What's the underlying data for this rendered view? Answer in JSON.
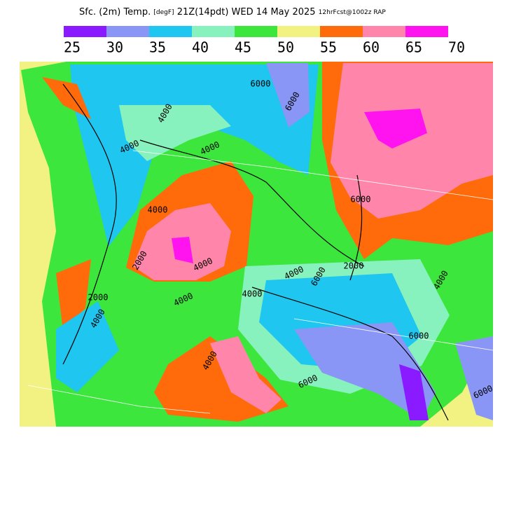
{
  "header": {
    "title": "Sfc. (2m) Temp.",
    "units": "[degF]",
    "time": "21Z(14pdt) WED 14 May 2025",
    "forecast": "12hrFcst@1002z RAP"
  },
  "legend": {
    "colors": [
      "#8a1aff",
      "#8a96f5",
      "#1ec6f0",
      "#88f2be",
      "#3ce63c",
      "#f2f282",
      "#ff6a0a",
      "#ff86aa",
      "#ff14f0"
    ],
    "labels": [
      "25",
      "30",
      "35",
      "40",
      "45",
      "50",
      "55",
      "60",
      "65",
      "70"
    ]
  },
  "contour_labels": [
    "4000",
    "4000",
    "6000",
    "6000",
    "4000",
    "4000",
    "2000",
    "4000",
    "2000",
    "4000",
    "4000",
    "4000",
    "6000",
    "4000",
    "6000",
    "4000",
    "6000",
    "2000",
    "4000",
    "6000",
    "6000"
  ]
}
